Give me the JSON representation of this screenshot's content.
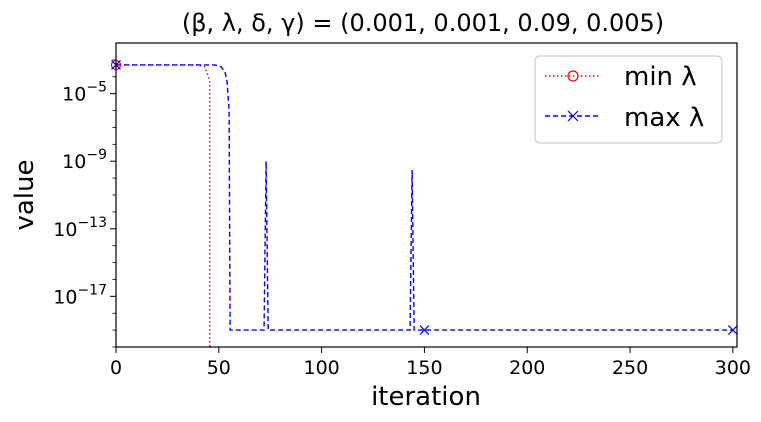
{
  "chart_data": {
    "type": "line",
    "title": "(β, λ, δ, γ) = (0.001, 0.001, 0.09, 0.005)",
    "xlabel": "iteration",
    "ylabel": "value",
    "xlim": [
      0,
      302
    ],
    "ylim": [
      1e-20,
      0.01
    ],
    "yscale": "log",
    "x_ticks": [
      0,
      50,
      100,
      150,
      200,
      250,
      300
    ],
    "y_ticks": [
      {
        "value": 1e-05,
        "base": "10",
        "exp": "−5"
      },
      {
        "value": 1e-09,
        "base": "10",
        "exp": "−9"
      },
      {
        "value": 1e-13,
        "base": "10",
        "exp": "−13"
      },
      {
        "value": 1e-17,
        "base": "10",
        "exp": "−17"
      }
    ],
    "legend_position": "top-right",
    "series": [
      {
        "name": "min λ",
        "color": "#ff0000",
        "linestyle": "dotted",
        "marker": "circle-open",
        "marker_x": [
          0,
          150,
          300
        ],
        "points": [
          [
            0,
            0.0005
          ],
          [
            40,
            0.0005
          ],
          [
            43,
            0.0004
          ],
          [
            44,
            0.0002
          ],
          [
            45,
            0.0001
          ],
          [
            45.6,
            5e-05
          ],
          [
            45.6,
            1e-21
          ]
        ]
      },
      {
        "name": "max λ",
        "color": "#0000ff",
        "linestyle": "dashed",
        "marker": "x",
        "marker_x": [
          0,
          150,
          300
        ],
        "points": [
          [
            0,
            0.0005
          ],
          [
            48,
            0.0005
          ],
          [
            51,
            0.0004
          ],
          [
            53,
            0.0002
          ],
          [
            54,
            5e-05
          ],
          [
            55,
            1e-06
          ],
          [
            55.5,
            1e-19
          ],
          [
            72,
            1e-19
          ],
          [
            73,
            1e-09
          ],
          [
            74,
            1e-19
          ],
          [
            143,
            1e-19
          ],
          [
            144,
            3e-10
          ],
          [
            145,
            1e-19
          ],
          [
            300,
            1e-19
          ]
        ]
      }
    ]
  }
}
